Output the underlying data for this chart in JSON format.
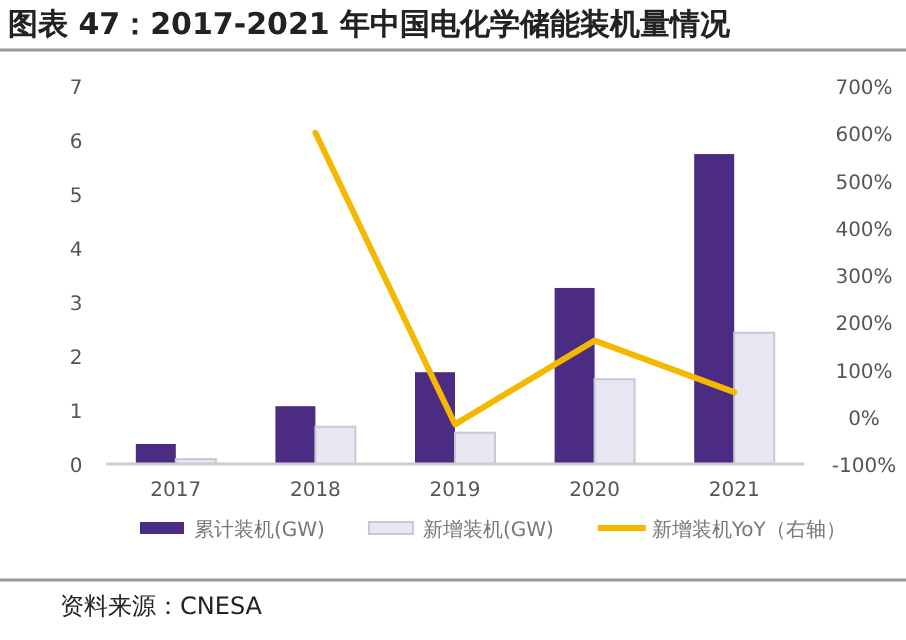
{
  "chart_data": {
    "type": "bar",
    "title": "图表 47：2017-2021 年中国电化学储能装机量情况",
    "categories": [
      "2017",
      "2018",
      "2019",
      "2020",
      "2021"
    ],
    "series": [
      {
        "name": "累计装机(GW)",
        "color": "#4b2c82",
        "values": [
          0.37,
          1.07,
          1.7,
          3.26,
          5.74
        ]
      },
      {
        "name": "新增装机(GW)",
        "color": "#e8e6f2",
        "values": [
          0.09,
          0.69,
          0.58,
          1.57,
          2.43
        ]
      },
      {
        "name": "新增装机YoY（右轴）",
        "type": "line",
        "axis": "y2",
        "color": "#f5b800",
        "values": [
          null,
          601,
          -16,
          161,
          52
        ]
      }
    ],
    "ylim": [
      0,
      7
    ],
    "yticks": [
      0,
      1,
      2,
      3,
      4,
      5,
      6,
      7
    ],
    "y2lim": [
      -100,
      700
    ],
    "y2ticks": [
      {
        "value": -100,
        "label": "-100%"
      },
      {
        "value": 0,
        "label": "0%"
      },
      {
        "value": 100,
        "label": "100%"
      },
      {
        "value": 200,
        "label": "200%"
      },
      {
        "value": 300,
        "label": "300%"
      },
      {
        "value": 400,
        "label": "400%"
      },
      {
        "value": 500,
        "label": "500%"
      },
      {
        "value": 600,
        "label": "600%"
      },
      {
        "value": 700,
        "label": "700%"
      }
    ],
    "legend": "bottom",
    "grid": false,
    "annotations": [
      "资料来源：CNESA"
    ]
  }
}
